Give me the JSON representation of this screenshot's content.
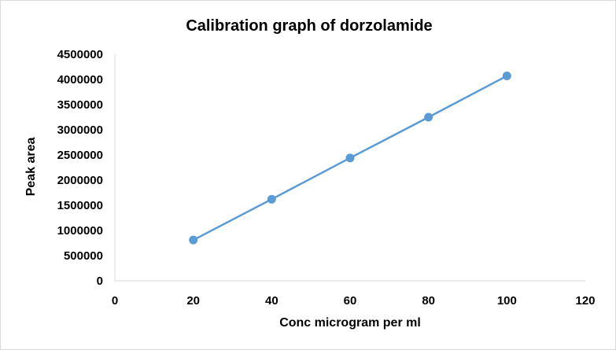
{
  "chart_data": {
    "type": "scatter",
    "title": "Calibration graph of dorzolamide",
    "xlabel": "Conc microgram per ml",
    "ylabel": "Peak  area",
    "xlim": [
      0,
      120
    ],
    "ylim": [
      0,
      4500000
    ],
    "x_ticks": [
      "0",
      "20",
      "40",
      "60",
      "80",
      "100",
      "120"
    ],
    "y_ticks": [
      "0",
      "500000",
      "1000000",
      "1500000",
      "2000000",
      "2500000",
      "3000000",
      "3500000",
      "4000000",
      "4500000"
    ],
    "grid": false,
    "legend": "none",
    "series": [
      {
        "color": "#5b9bd5",
        "x": [
          20,
          40,
          60,
          80,
          100
        ],
        "y": [
          810000,
          1620000,
          2440000,
          3250000,
          4070000
        ]
      }
    ]
  }
}
